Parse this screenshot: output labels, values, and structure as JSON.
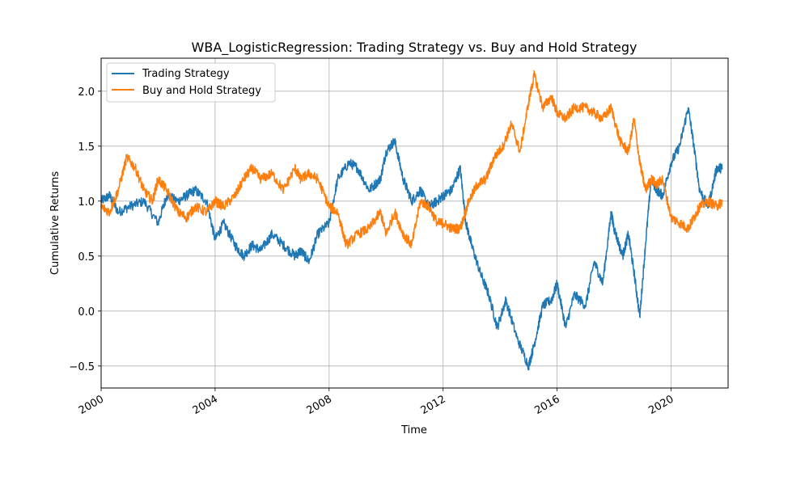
{
  "chart_data": {
    "type": "line",
    "title": "WBA_LogisticRegression: Trading Strategy vs. Buy and Hold Strategy",
    "xlabel": "Time",
    "ylabel": "Cumulative Returns",
    "xlim": [
      2000,
      2022
    ],
    "ylim": [
      -0.7,
      2.3
    ],
    "x_ticks": [
      2000,
      2004,
      2008,
      2012,
      2016,
      2020
    ],
    "x_tick_labels": [
      "2000",
      "2004",
      "2008",
      "2012",
      "2016",
      "2020"
    ],
    "y_ticks": [
      -0.5,
      0.0,
      0.5,
      1.0,
      1.5,
      2.0
    ],
    "y_tick_labels": [
      "−0.5",
      "0.0",
      "0.5",
      "1.0",
      "1.5",
      "2.0"
    ],
    "grid": true,
    "legend_position": "top-left",
    "series": [
      {
        "name": "Trading Strategy",
        "color": "#1f77b4",
        "x": [
          2000,
          2000.3,
          2000.6,
          2001,
          2001.5,
          2002,
          2002.3,
          2002.7,
          2003,
          2003.3,
          2003.7,
          2004,
          2004.3,
          2004.7,
          2005,
          2005.3,
          2005.6,
          2006,
          2006.4,
          2006.8,
          2007,
          2007.3,
          2007.6,
          2008,
          2008.3,
          2008.7,
          2009,
          2009.4,
          2009.8,
          2010,
          2010.3,
          2010.6,
          2010.9,
          2011.2,
          2011.5,
          2011.8,
          2012,
          2012.3,
          2012.6,
          2012.8,
          2013,
          2013.3,
          2013.6,
          2013.9,
          2014.2,
          2014.6,
          2015,
          2015.2,
          2015.5,
          2015.8,
          2016,
          2016.3,
          2016.6,
          2017,
          2017.3,
          2017.6,
          2017.9,
          2018,
          2018.3,
          2018.5,
          2018.7,
          2018.9,
          2019.1,
          2019.3,
          2019.5,
          2019.7,
          2020,
          2020.3,
          2020.6,
          2020.8,
          2021,
          2021.3,
          2021.6,
          2021.8
        ],
        "y": [
          1.0,
          1.05,
          0.9,
          0.95,
          1.0,
          0.8,
          1.05,
          1.0,
          1.05,
          1.1,
          1.0,
          0.65,
          0.8,
          0.6,
          0.5,
          0.6,
          0.55,
          0.7,
          0.6,
          0.5,
          0.55,
          0.45,
          0.7,
          0.8,
          1.2,
          1.35,
          1.3,
          1.1,
          1.2,
          1.45,
          1.55,
          1.2,
          1.0,
          1.1,
          0.95,
          1.0,
          1.05,
          1.1,
          1.3,
          0.8,
          0.6,
          0.35,
          0.15,
          -0.15,
          0.1,
          -0.25,
          -0.5,
          -0.3,
          0.05,
          0.1,
          0.25,
          -0.15,
          0.15,
          0.05,
          0.45,
          0.25,
          0.9,
          0.75,
          0.5,
          0.7,
          0.35,
          -0.05,
          0.6,
          1.2,
          1.1,
          1.05,
          1.35,
          1.5,
          1.85,
          1.5,
          1.1,
          0.95,
          1.3,
          1.3
        ]
      },
      {
        "name": "Buy and Hold Strategy",
        "color": "#ff7f0e",
        "x": [
          2000,
          2000.3,
          2000.6,
          2000.9,
          2001.2,
          2001.5,
          2001.8,
          2002,
          2002.3,
          2002.7,
          2003,
          2003.3,
          2003.7,
          2004,
          2004.3,
          2004.7,
          2005,
          2005.3,
          2005.6,
          2006,
          2006.4,
          2006.8,
          2007,
          2007.3,
          2007.6,
          2008,
          2008.3,
          2008.6,
          2009,
          2009.4,
          2009.8,
          2010,
          2010.3,
          2010.6,
          2010.9,
          2011.2,
          2011.5,
          2011.8,
          2012,
          2012.3,
          2012.6,
          2012.9,
          2013.2,
          2013.5,
          2013.8,
          2014.1,
          2014.4,
          2014.7,
          2015,
          2015.2,
          2015.5,
          2015.8,
          2016,
          2016.3,
          2016.6,
          2017,
          2017.3,
          2017.6,
          2017.9,
          2018.2,
          2018.5,
          2018.7,
          2018.9,
          2019.1,
          2019.3,
          2019.5,
          2019.7,
          2020,
          2020.3,
          2020.6,
          2020.8,
          2021,
          2021.3,
          2021.6,
          2021.8
        ],
        "y": [
          0.95,
          0.9,
          1.1,
          1.4,
          1.3,
          1.1,
          1.0,
          1.2,
          1.1,
          0.9,
          0.85,
          0.95,
          0.9,
          1.0,
          0.95,
          1.05,
          1.2,
          1.3,
          1.2,
          1.25,
          1.1,
          1.3,
          1.2,
          1.25,
          1.2,
          0.95,
          0.9,
          0.6,
          0.7,
          0.75,
          0.9,
          0.7,
          0.9,
          0.7,
          0.6,
          1.0,
          0.95,
          0.8,
          0.8,
          0.75,
          0.75,
          1.0,
          1.15,
          1.2,
          1.4,
          1.5,
          1.7,
          1.45,
          1.9,
          2.15,
          1.85,
          1.95,
          1.8,
          1.75,
          1.85,
          1.85,
          1.8,
          1.75,
          1.85,
          1.55,
          1.45,
          1.75,
          1.35,
          1.1,
          1.2,
          1.15,
          1.2,
          0.85,
          0.8,
          0.75,
          0.85,
          0.95,
          1.0,
          0.95,
          1.0
        ]
      }
    ]
  }
}
